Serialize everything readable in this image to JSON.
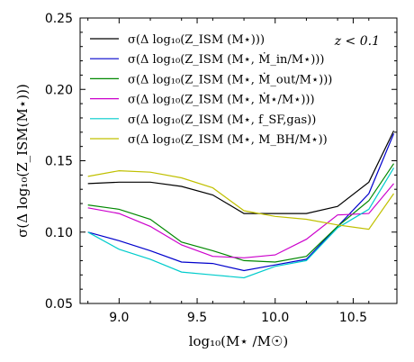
{
  "chart_data": {
    "type": "line",
    "xlabel": "log₁₀(M⋆ /M☉)",
    "ylabel": "σ(Δ log₁₀(Z_ISM(M⋆)))",
    "xlim": [
      8.75,
      10.78
    ],
    "ylim": [
      0.05,
      0.25
    ],
    "xticks": [
      "9.0",
      "9.5",
      "10.0",
      "10.5"
    ],
    "xtick_values": [
      9.0,
      9.5,
      10.0,
      10.5
    ],
    "yticks": [
      "0.05",
      "0.10",
      "0.15",
      "0.20",
      "0.25"
    ],
    "ytick_values": [
      0.05,
      0.1,
      0.15,
      0.2,
      0.25
    ],
    "annotation": "z < 0.1",
    "legend_position": "top",
    "grid": false,
    "series": [
      {
        "name": "σ(Δ log₁₀(Z_ISM (M⋆)))",
        "color": "#000000",
        "x": [
          8.8,
          9.0,
          9.2,
          9.4,
          9.6,
          9.8,
          10.0,
          10.2,
          10.4,
          10.6,
          10.76
        ],
        "y": [
          0.134,
          0.135,
          0.135,
          0.132,
          0.126,
          0.113,
          0.113,
          0.113,
          0.118,
          0.135,
          0.171
        ]
      },
      {
        "name": "σ(Δ log₁₀(Z_ISM (M⋆, Ṁ_in/M⋆)))",
        "color": "#0000cc",
        "x": [
          8.8,
          9.0,
          9.2,
          9.4,
          9.6,
          9.8,
          10.0,
          10.2,
          10.4,
          10.6,
          10.76
        ],
        "y": [
          0.1,
          0.094,
          0.087,
          0.079,
          0.078,
          0.073,
          0.077,
          0.081,
          0.104,
          0.127,
          0.169
        ]
      },
      {
        "name": "σ(Δ log₁₀(Z_ISM (M⋆, Ṁ_out/M⋆)))",
        "color": "#008800",
        "x": [
          8.8,
          9.0,
          9.2,
          9.4,
          9.6,
          9.8,
          10.0,
          10.2,
          10.4,
          10.6,
          10.76
        ],
        "y": [
          0.119,
          0.116,
          0.109,
          0.093,
          0.087,
          0.08,
          0.079,
          0.083,
          0.104,
          0.122,
          0.148
        ]
      },
      {
        "name": "σ(Δ log₁₀(Z_ISM (M⋆, Ṁ⋆/M⋆)))",
        "color": "#cc00cc",
        "x": [
          8.8,
          9.0,
          9.2,
          9.4,
          9.6,
          9.8,
          10.0,
          10.2,
          10.4,
          10.6,
          10.76
        ],
        "y": [
          0.117,
          0.113,
          0.104,
          0.091,
          0.083,
          0.082,
          0.084,
          0.095,
          0.112,
          0.113,
          0.134
        ]
      },
      {
        "name": "σ(Δ log₁₀(Z_ISM (M⋆, f_SF,gas))",
        "color": "#00cccc",
        "x": [
          8.8,
          9.0,
          9.2,
          9.4,
          9.6,
          9.8,
          10.0,
          10.2,
          10.4,
          10.6,
          10.76
        ],
        "y": [
          0.1,
          0.088,
          0.081,
          0.072,
          0.07,
          0.068,
          0.076,
          0.08,
          0.103,
          0.116,
          0.145
        ]
      },
      {
        "name": "σ(Δ log₁₀(Z_ISM (M⋆, M_BH/M⋆))",
        "color": "#c0c000",
        "x": [
          8.8,
          9.0,
          9.2,
          9.4,
          9.6,
          9.8,
          10.0,
          10.2,
          10.4,
          10.6,
          10.76
        ],
        "y": [
          0.139,
          0.143,
          0.142,
          0.138,
          0.131,
          0.115,
          0.111,
          0.109,
          0.105,
          0.102,
          0.127
        ]
      }
    ]
  }
}
